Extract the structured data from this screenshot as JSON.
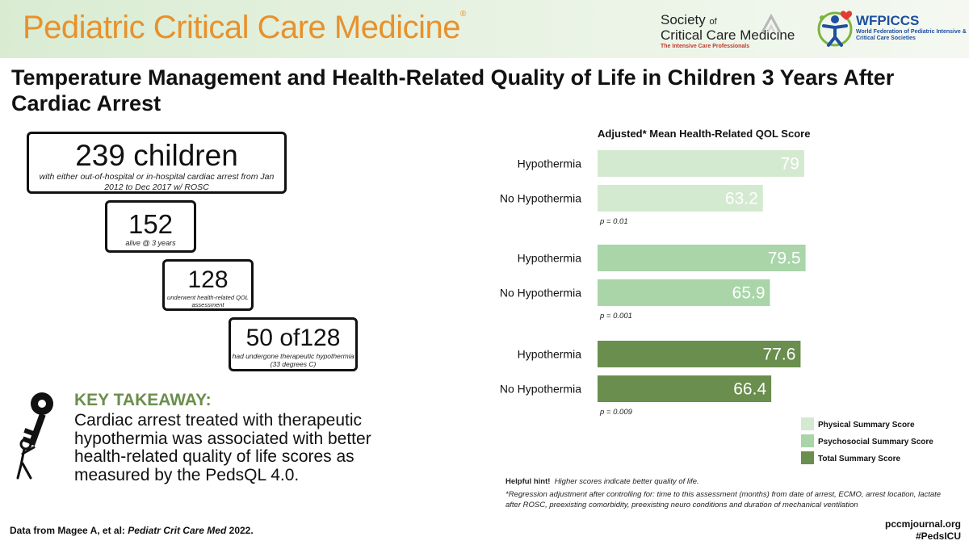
{
  "header": {
    "journal": "Pediatric Critical Care Medicine",
    "sccm": {
      "line1a": "Society",
      "line1b": "of",
      "line2": "Critical Care Medicine",
      "line3": "The Intensive Care Professionals"
    },
    "wfpiccs": {
      "acronym": "WFPICCS",
      "line1": "World Federation of Pediatric Intensive &",
      "line2": "Critical Care Societies"
    }
  },
  "title": "Temperature Management and Health-Related Quality of Life in Children 3 Years After Cardiac Arrest",
  "funnel": [
    {
      "num": "239 children",
      "desc": "with either out-of-hospital or in-hospital cardiac arrest from Jan 2012 to Dec 2017 w/ ROSC"
    },
    {
      "num": "152",
      "desc": "alive @ 3 years"
    },
    {
      "num": "128",
      "desc": "underwent health-related QOL assessment"
    },
    {
      "num": "50 of128",
      "desc": "had undergone therapeutic hypothermia (33 degrees C)"
    }
  ],
  "takeaway": {
    "heading": "KEY TAKEAWAY:",
    "body": "Cardiac arrest treated with therapeutic hypothermia was associated with better health-related quality of life scores as measured by the PedsQL 4.0."
  },
  "chart_data": {
    "type": "bar",
    "orientation": "horizontal",
    "title": "Adjusted* Mean Health-Related QOL Score",
    "xlim": [
      0,
      100
    ],
    "groups": [
      {
        "name": "Physical Summary Score",
        "color": "#d4ead0",
        "bars": [
          {
            "label": "Hypothermia",
            "value": 79
          },
          {
            "label": "No Hypothermia",
            "value": 63.2
          }
        ],
        "p": "p = 0.01"
      },
      {
        "name": "Psychosocial Summary Score",
        "color": "#a9d5a8",
        "bars": [
          {
            "label": "Hypothermia",
            "value": 79.5
          },
          {
            "label": "No Hypothermia",
            "value": 65.9
          }
        ],
        "p": "p = 0.001"
      },
      {
        "name": "Total Summary Score",
        "color": "#6a8e4e",
        "bars": [
          {
            "label": "Hypothermia",
            "value": 77.6
          },
          {
            "label": "No Hypothermia",
            "value": 66.4
          }
        ],
        "p": "p = 0.009"
      }
    ],
    "legend_position": "bottom-right"
  },
  "hint": {
    "label": "Helpful hint!",
    "text": "Higher scores indicate better quality of life."
  },
  "footnote": "*Regression adjustment after controlling for:  time to this assessment (months) from date of arrest, ECMO, arrest location, lactate after ROSC, preexisting comorbidity, preexisting neuro conditions and duration of mechanical ventilation",
  "footer": {
    "source_prefix": "Data from Magee A, et al: ",
    "source_journal": "Pediatr Crit Care Med",
    "source_year": " 2022.",
    "url": "pccmjournal.org",
    "hashtag": "#PedsICU"
  }
}
